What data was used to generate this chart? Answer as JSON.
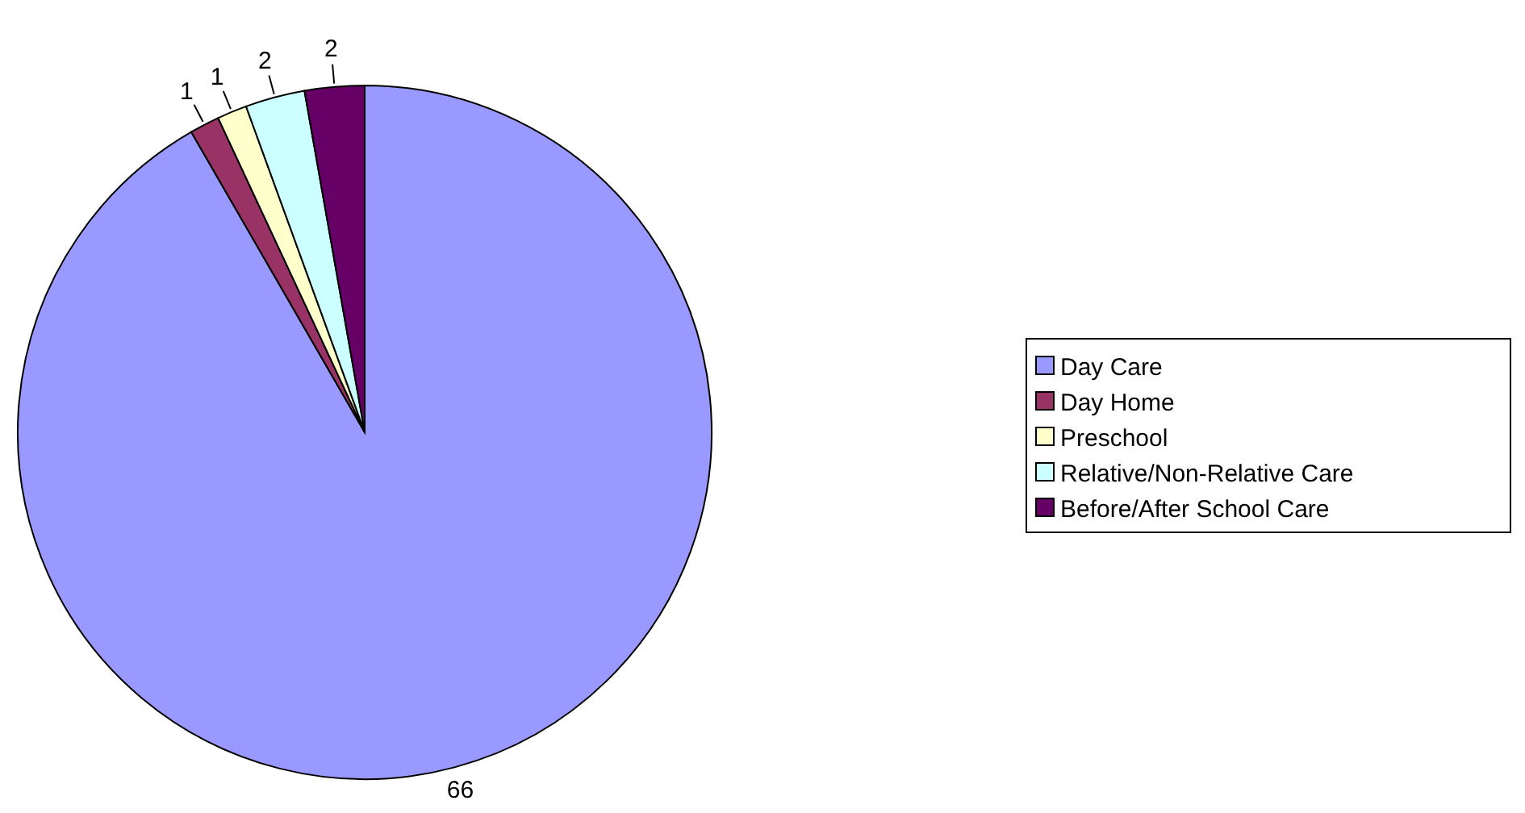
{
  "chart_data": {
    "type": "pie",
    "categories": [
      "Day Care",
      "Day Home",
      "Preschool",
      "Relative/Non-Relative Care",
      "Before/After School Care"
    ],
    "values": [
      66,
      1,
      1,
      2,
      2
    ],
    "colors": [
      "#9999ff",
      "#993366",
      "#ffffcc",
      "#ccffff",
      "#660066"
    ],
    "data_labels": true,
    "legend": "right"
  }
}
